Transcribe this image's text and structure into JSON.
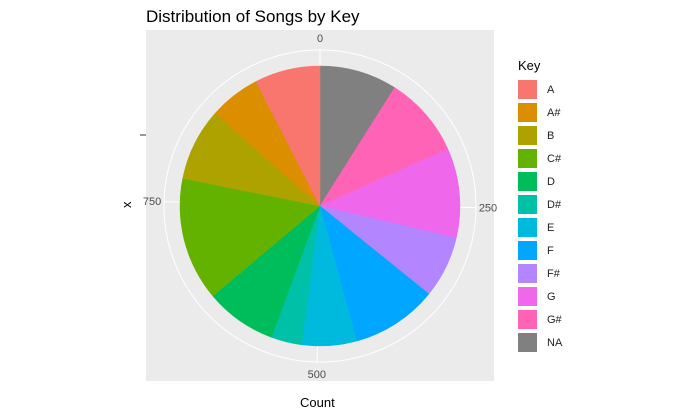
{
  "chart_data": {
    "type": "pie",
    "title": "Distribution of Songs by Key",
    "xlabel": "Count",
    "ylabel": "x",
    "legend_title": "Key",
    "legend_position": "right",
    "theta_ticks": [
      0,
      250,
      500,
      750
    ],
    "categories": [
      "A",
      "A#",
      "B",
      "C#",
      "D",
      "D#",
      "E",
      "F",
      "F#",
      "G",
      "G#",
      "NA"
    ],
    "values": [
      75,
      59,
      83,
      142,
      82,
      35,
      63,
      99,
      71,
      103,
      93,
      89
    ],
    "colors": [
      "#F8766D",
      "#DB8E00",
      "#AEA200",
      "#64B200",
      "#00BD5C",
      "#00C1A7",
      "#00BADE",
      "#00A6FF",
      "#B385FF",
      "#EF67EB",
      "#FF63B6",
      "#808080"
    ],
    "stack_order_clockwise_from_top": [
      "NA",
      "G#",
      "G",
      "F#",
      "F",
      "E",
      "D#",
      "D",
      "C#",
      "B",
      "A#",
      "A"
    ]
  }
}
